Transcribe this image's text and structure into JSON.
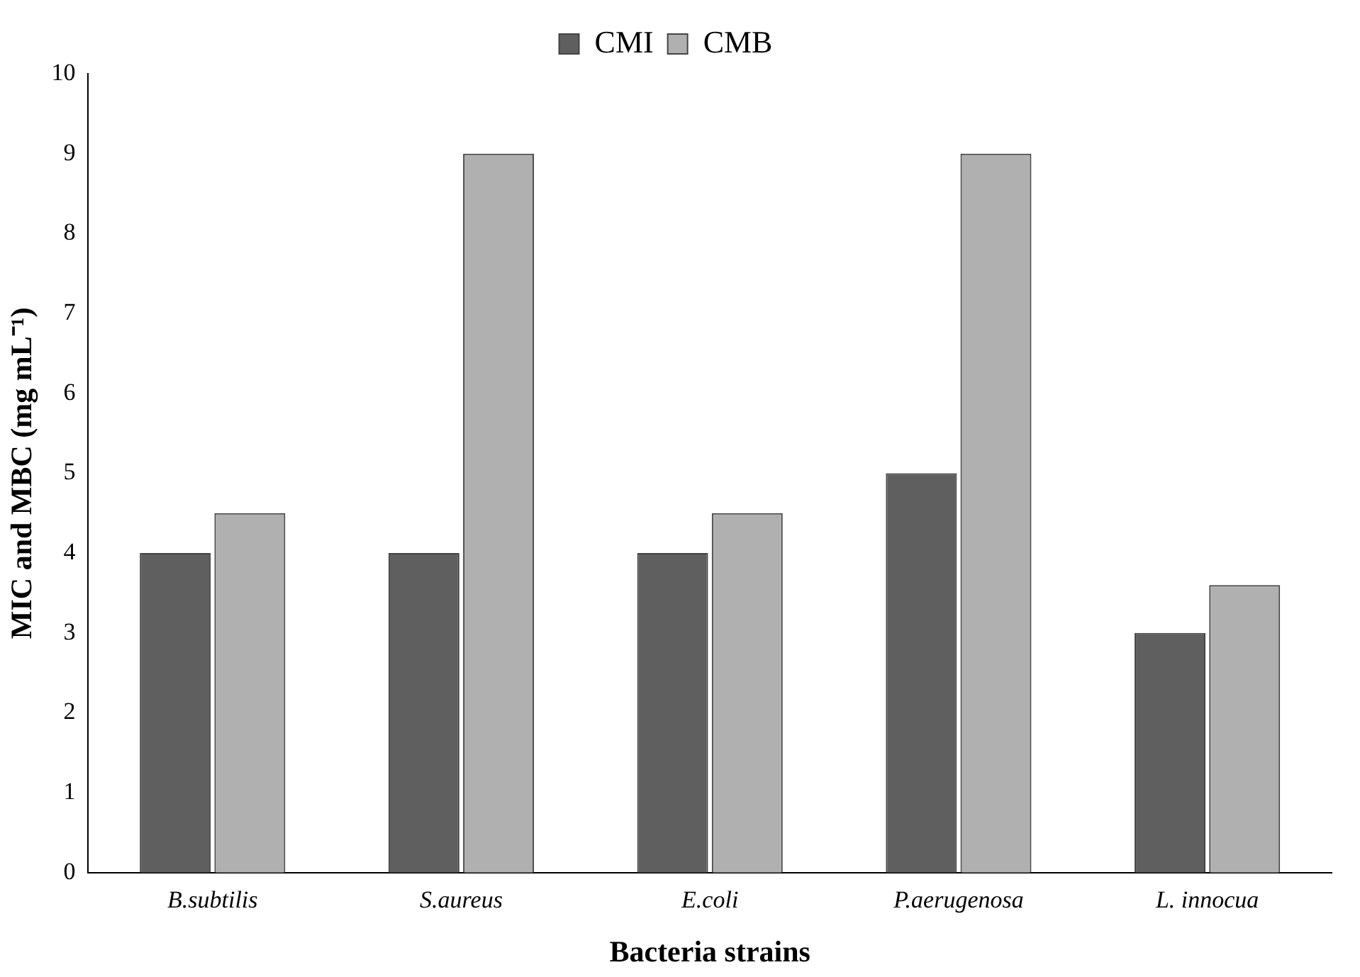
{
  "chart_data": {
    "type": "bar",
    "xlabel": "Bacteria strains",
    "ylabel": "MIC and MBC (mg mL⁻¹)",
    "categories": [
      "B.subtilis",
      "S.aureus",
      "E.coli",
      "P.aerugenosa",
      "L. innocua"
    ],
    "series": [
      {
        "name": "CMI",
        "color": "#5f5f5f",
        "values": [
          4,
          4,
          4,
          5,
          3
        ]
      },
      {
        "name": "CMB",
        "color": "#b0b0b0",
        "values": [
          4.5,
          9,
          4.5,
          9,
          3.6
        ]
      }
    ],
    "ylim": [
      0,
      10
    ],
    "yticks": [
      0,
      1,
      2,
      3,
      4,
      5,
      6,
      7,
      8,
      9,
      10
    ],
    "grid": false,
    "legend": "top"
  }
}
